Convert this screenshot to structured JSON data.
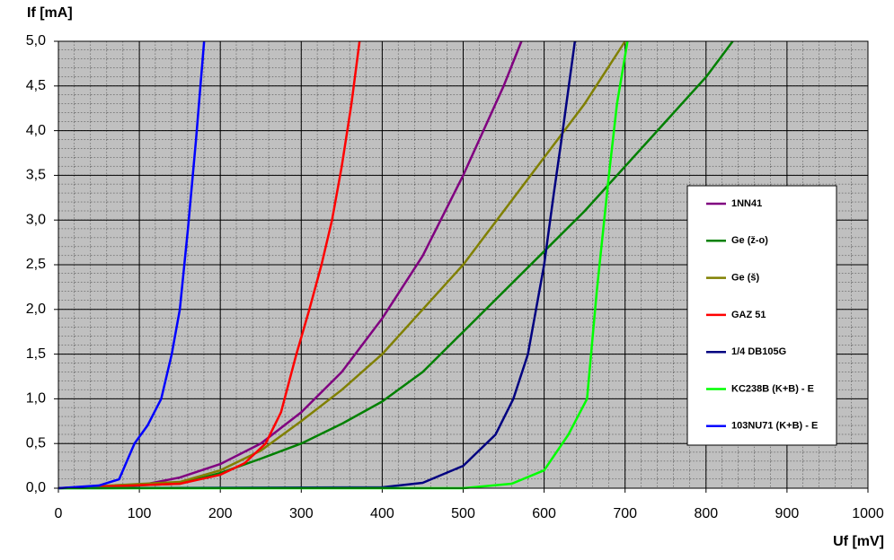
{
  "chart_data": {
    "type": "line",
    "y_label": "If [mA]",
    "x_label": "Uf [mV]",
    "xlim": [
      0,
      1000
    ],
    "ylim": [
      0,
      5
    ],
    "xticks": [
      0,
      100,
      200,
      300,
      400,
      500,
      600,
      700,
      800,
      900,
      1000
    ],
    "yticks": [
      {
        "value": 0,
        "label": "0,0"
      },
      {
        "value": 0.5,
        "label": "0,5"
      },
      {
        "value": 1,
        "label": "1,0"
      },
      {
        "value": 1.5,
        "label": "1,5"
      },
      {
        "value": 2,
        "label": "2,0"
      },
      {
        "value": 2.5,
        "label": "2,5"
      },
      {
        "value": 3,
        "label": "3,0"
      },
      {
        "value": 3.5,
        "label": "3,5"
      },
      {
        "value": 4,
        "label": "4,0"
      },
      {
        "value": 4.5,
        "label": "4,5"
      },
      {
        "value": 5,
        "label": "5,0"
      }
    ],
    "grid": true,
    "legend": "right",
    "series": [
      {
        "name": "1NN41",
        "color": "#800080",
        "x": [
          0,
          100,
          150,
          200,
          250,
          300,
          350,
          400,
          450,
          500,
          550,
          572
        ],
        "values": [
          0,
          0.03,
          0.12,
          0.27,
          0.5,
          0.85,
          1.3,
          1.9,
          2.6,
          3.5,
          4.5,
          5.0
        ]
      },
      {
        "name": "Ge (ž-o)",
        "color": "#008000",
        "x": [
          0,
          150,
          200,
          250,
          300,
          350,
          400,
          450,
          500,
          550,
          600,
          650,
          700,
          750,
          800,
          833
        ],
        "values": [
          0,
          0.05,
          0.17,
          0.33,
          0.5,
          0.72,
          0.97,
          1.3,
          1.75,
          2.2,
          2.65,
          3.1,
          3.6,
          4.1,
          4.6,
          5.0
        ]
      },
      {
        "name": "Ge (š)",
        "color": "#808000",
        "x": [
          0,
          150,
          200,
          250,
          300,
          350,
          400,
          450,
          500,
          550,
          600,
          650,
          700
        ],
        "values": [
          0,
          0.07,
          0.2,
          0.42,
          0.75,
          1.1,
          1.5,
          2.0,
          2.5,
          3.1,
          3.7,
          4.3,
          5.0
        ]
      },
      {
        "name": "GAZ 51",
        "color": "#ff0000",
        "x": [
          0,
          150,
          200,
          230,
          256,
          275,
          294,
          310,
          325,
          338,
          350,
          362,
          372
        ],
        "values": [
          0,
          0.05,
          0.15,
          0.28,
          0.5,
          0.85,
          1.5,
          2.0,
          2.5,
          3.0,
          3.6,
          4.3,
          5.0
        ]
      },
      {
        "name": "1/4 DB105G",
        "color": "#000080",
        "x": [
          0,
          400,
          450,
          500,
          540,
          562,
          580,
          590,
          600,
          612,
          623,
          632,
          638
        ],
        "values": [
          0,
          0.01,
          0.06,
          0.25,
          0.6,
          1.0,
          1.5,
          2.0,
          2.5,
          3.3,
          4.0,
          4.6,
          5.0
        ]
      },
      {
        "name": "KC238B (K+B) - E",
        "color": "#00ff00",
        "x": [
          0,
          500,
          560,
          600,
          630,
          653,
          665,
          680,
          690,
          703
        ],
        "values": [
          0,
          0,
          0.05,
          0.2,
          0.6,
          1.0,
          2.2,
          3.5,
          4.3,
          5.0
        ]
      },
      {
        "name": "103NU71 (K+B) - E",
        "color": "#0000ff",
        "x": [
          0,
          50,
          75,
          94,
          110,
          127,
          140,
          150,
          160,
          170,
          180
        ],
        "values": [
          0,
          0.03,
          0.1,
          0.5,
          0.7,
          1.0,
          1.5,
          2.0,
          2.9,
          3.9,
          5.0
        ]
      }
    ]
  }
}
